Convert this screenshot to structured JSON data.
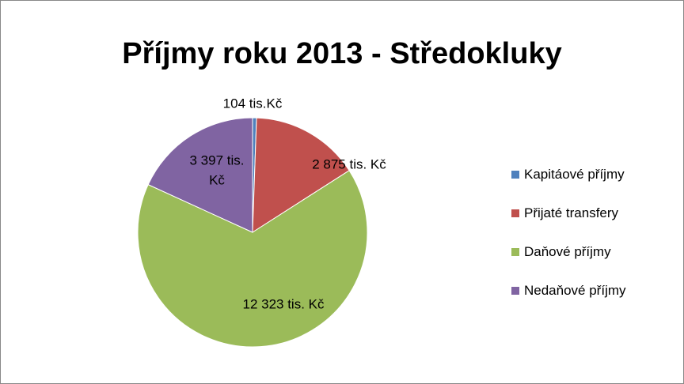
{
  "chart_data": {
    "type": "pie",
    "title": "Příjmy roku 2013 - Středokluky",
    "categories": [
      "Kapitáové příjmy",
      "Přijaté transfery",
      "Daňové příjmy",
      "Nedaňové příjmy"
    ],
    "values": [
      104,
      2875,
      12323,
      3397
    ],
    "value_labels": [
      "104 tis.Kč",
      "2 875 tis. Kč",
      "12 323 tis. Kč",
      "3 397 tis. Kč"
    ],
    "colors": [
      "#4f81bd",
      "#c0504d",
      "#9bbb59",
      "#8064a2"
    ],
    "legend": "right"
  }
}
